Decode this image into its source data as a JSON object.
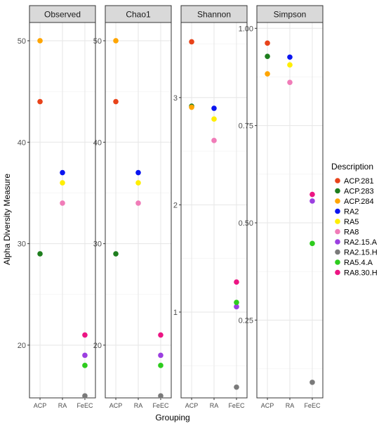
{
  "chart_data": {
    "type": "scatter",
    "xlabel": "Grouping",
    "ylabel": "Alpha Diversity Measure",
    "categories": [
      "ACP",
      "RA",
      "FeEC"
    ],
    "legend": {
      "title": "Description",
      "placement": "right",
      "entries": [
        {
          "name": "ACP.281",
          "color": "#E8431A"
        },
        {
          "name": "ACP.283",
          "color": "#1E7E1E"
        },
        {
          "name": "ACP.284",
          "color": "#FFA500"
        },
        {
          "name": "RA2",
          "color": "#0A15F0"
        },
        {
          "name": "RA5",
          "color": "#FFEE00"
        },
        {
          "name": "RA8",
          "color": "#F07CB8"
        },
        {
          "name": "RA2.15.A",
          "color": "#9B3FE0"
        },
        {
          "name": "RA2.15.H",
          "color": "#7A7A7A"
        },
        {
          "name": "RA5.4.A",
          "color": "#2ECC1E"
        },
        {
          "name": "RA8.30.H",
          "color": "#EC1583"
        }
      ]
    },
    "panels": [
      {
        "title": "Observed",
        "ylim": [
          14.8,
          51.8
        ],
        "yticks": [
          20,
          30,
          40,
          50
        ],
        "tick_labels": [
          "20",
          "30",
          "40",
          "50"
        ],
        "points": [
          {
            "group": "ACP",
            "name": "ACP.281",
            "y": 44
          },
          {
            "group": "ACP",
            "name": "ACP.283",
            "y": 29
          },
          {
            "group": "ACP",
            "name": "ACP.284",
            "y": 50
          },
          {
            "group": "RA",
            "name": "RA2",
            "y": 37
          },
          {
            "group": "RA",
            "name": "RA5",
            "y": 36
          },
          {
            "group": "RA",
            "name": "RA8",
            "y": 34
          },
          {
            "group": "FeEC",
            "name": "RA2.15.A",
            "y": 19
          },
          {
            "group": "FeEC",
            "name": "RA2.15.H",
            "y": 15
          },
          {
            "group": "FeEC",
            "name": "RA5.4.A",
            "y": 18
          },
          {
            "group": "FeEC",
            "name": "RA8.30.H",
            "y": 21
          }
        ]
      },
      {
        "title": "Chao1",
        "ylim": [
          14.8,
          51.8
        ],
        "yticks": [
          20,
          30,
          40,
          50
        ],
        "tick_labels": [
          "20",
          "30",
          "40",
          "50"
        ],
        "points": [
          {
            "group": "ACP",
            "name": "ACP.281",
            "y": 44
          },
          {
            "group": "ACP",
            "name": "ACP.283",
            "y": 29
          },
          {
            "group": "ACP",
            "name": "ACP.284",
            "y": 50
          },
          {
            "group": "RA",
            "name": "RA2",
            "y": 37
          },
          {
            "group": "RA",
            "name": "RA5",
            "y": 36
          },
          {
            "group": "RA",
            "name": "RA8",
            "y": 34
          },
          {
            "group": "FeEC",
            "name": "RA2.15.A",
            "y": 19
          },
          {
            "group": "FeEC",
            "name": "RA2.15.H",
            "y": 15
          },
          {
            "group": "FeEC",
            "name": "RA5.4.A",
            "y": 18
          },
          {
            "group": "FeEC",
            "name": "RA8.30.H",
            "y": 21
          }
        ]
      },
      {
        "title": "Shannon",
        "ylim": [
          0.2,
          3.7
        ],
        "yticks": [
          1,
          2,
          3
        ],
        "tick_labels": [
          "1",
          "2",
          "3"
        ],
        "points": [
          {
            "group": "ACP",
            "name": "ACP.281",
            "y": 3.52
          },
          {
            "group": "ACP",
            "name": "ACP.283",
            "y": 2.92
          },
          {
            "group": "ACP",
            "name": "ACP.284",
            "y": 2.91
          },
          {
            "group": "RA",
            "name": "RA2",
            "y": 2.9
          },
          {
            "group": "RA",
            "name": "RA5",
            "y": 2.8
          },
          {
            "group": "RA",
            "name": "RA8",
            "y": 2.6
          },
          {
            "group": "FeEC",
            "name": "RA2.15.A",
            "y": 1.05
          },
          {
            "group": "FeEC",
            "name": "RA2.15.H",
            "y": 0.3
          },
          {
            "group": "FeEC",
            "name": "RA5.4.A",
            "y": 1.09
          },
          {
            "group": "FeEC",
            "name": "RA8.30.H",
            "y": 1.28
          }
        ]
      },
      {
        "title": "Simpson",
        "ylim": [
          0.05,
          1.015
        ],
        "yticks": [
          0.25,
          0.5,
          0.75,
          1.0
        ],
        "tick_labels": [
          "0.25",
          "0.50",
          "0.75",
          "1.00"
        ],
        "points": [
          {
            "group": "ACP",
            "name": "ACP.281",
            "y": 0.962
          },
          {
            "group": "ACP",
            "name": "ACP.283",
            "y": 0.928
          },
          {
            "group": "ACP",
            "name": "ACP.284",
            "y": 0.883
          },
          {
            "group": "RA",
            "name": "RA2",
            "y": 0.926
          },
          {
            "group": "RA",
            "name": "RA5",
            "y": 0.906
          },
          {
            "group": "RA",
            "name": "RA8",
            "y": 0.861
          },
          {
            "group": "FeEC",
            "name": "RA2.15.A",
            "y": 0.556
          },
          {
            "group": "FeEC",
            "name": "RA2.15.H",
            "y": 0.09
          },
          {
            "group": "FeEC",
            "name": "RA5.4.A",
            "y": 0.447
          },
          {
            "group": "FeEC",
            "name": "RA8.30.H",
            "y": 0.573
          }
        ]
      }
    ]
  }
}
